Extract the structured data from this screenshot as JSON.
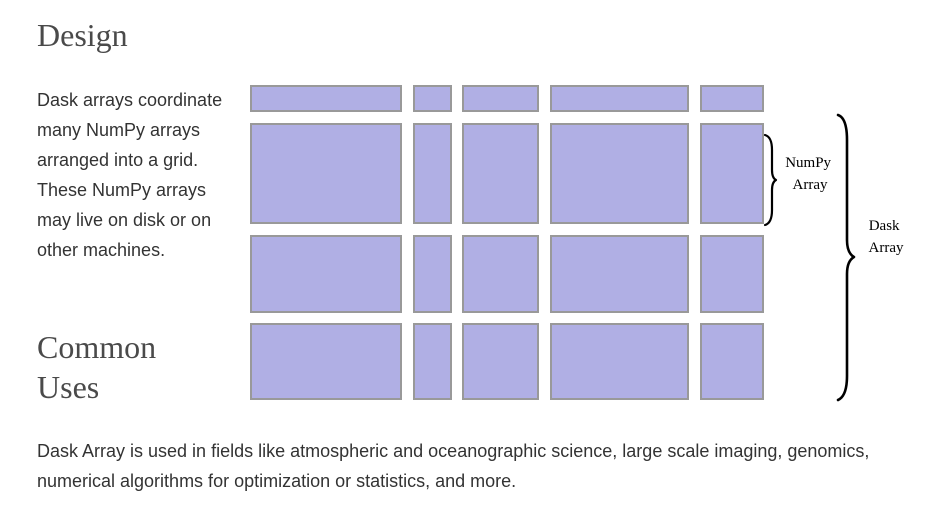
{
  "design": {
    "heading": "Design",
    "paragraph": "Dask arrays coordinate many NumPy arrays arranged into a grid. These NumPy arrays may live on disk or on other machines."
  },
  "common_uses": {
    "heading": "Common Uses",
    "paragraph": "Dask Array is used in fields like atmospheric and oceanographic science, large scale imaging, genomics, numerical algorithms for optimization or statistics, and more."
  },
  "diagram": {
    "numpy_label": [
      "NumPy",
      "Array"
    ],
    "dask_label": [
      "Dask",
      "Array"
    ],
    "grid": {
      "rows": 4,
      "columns": 5
    },
    "chunk_color": "#b0afe4",
    "chunk_border_color": "#999999"
  }
}
